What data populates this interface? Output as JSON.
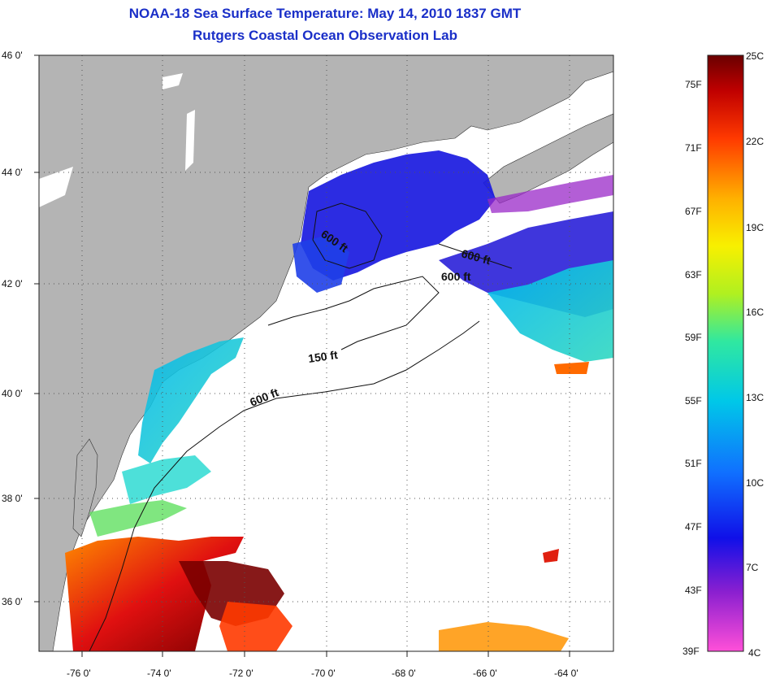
{
  "header": {
    "title": "NOAA-18 Sea Surface Temperature:  May 14, 2010 1837 GMT",
    "subtitle": "Rutgers Coastal Ocean Observation Lab"
  },
  "map": {
    "lat_labels": [
      "46 0'",
      "44 0'",
      "42 0'",
      "40 0'",
      "38 0'",
      "36 0'"
    ],
    "lon_labels": [
      "-76 0'",
      "-74 0'",
      "-72 0'",
      "-70 0'",
      "-68 0'",
      "-66 0'",
      "-64 0'"
    ],
    "contour_labels": [
      "600 ft",
      "600 ft",
      "600 ft",
      "150 ft",
      "600 ft"
    ],
    "colors": {
      "land": "#b4b4b4",
      "ocean": "#ffffff",
      "cold": "#1a1adf",
      "warm": "#d01010",
      "hot": "#7a0000"
    }
  },
  "colorbar": {
    "fahrenheit": [
      "75F",
      "71F",
      "67F",
      "63F",
      "59F",
      "55F",
      "51F",
      "47F",
      "43F",
      "39F"
    ],
    "celsius": [
      "25C",
      "22C",
      "19C",
      "16C",
      "13C",
      "10C",
      "7C",
      "4C"
    ]
  }
}
